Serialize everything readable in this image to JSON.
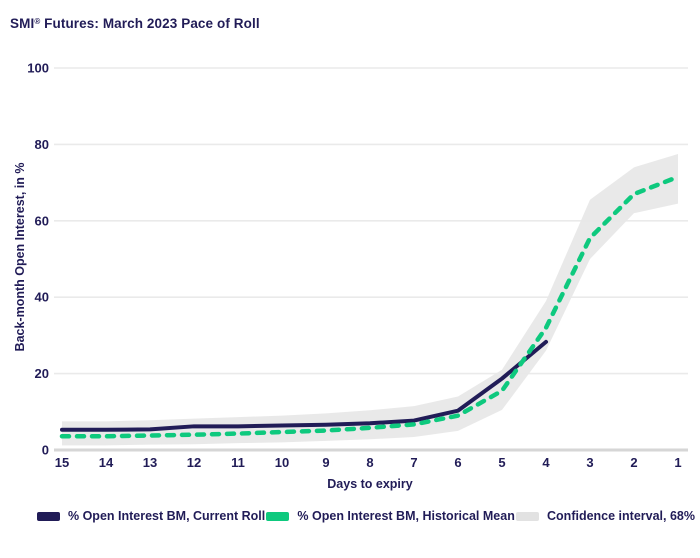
{
  "title": {
    "brand": "SMI",
    "sup": "®",
    "rest": " Futures: March 2023 Pace of Roll"
  },
  "colors": {
    "navy": "#211c57",
    "green": "#0ec97e",
    "band": "#e8e8e8",
    "grid": "#eaeaea",
    "grid_zero": "#d6d6d6",
    "text": "#211c57",
    "background": "#ffffff"
  },
  "chart_data": {
    "type": "line",
    "title": "SMI® Futures: March 2023 Pace of Roll",
    "xlabel": "Days to expiry",
    "ylabel": "Back-month Open Interest, in %",
    "x": [
      15,
      14,
      13,
      12,
      11,
      10,
      9,
      8,
      7,
      6,
      5,
      4,
      3,
      2,
      1
    ],
    "x_reversed_axis": true,
    "ylim": [
      0,
      100
    ],
    "yticks": [
      0,
      20,
      40,
      60,
      80,
      100
    ],
    "grid": "horizontal",
    "legend_position": "bottom",
    "series": [
      {
        "name": "% Open Interest BM, Current Roll",
        "color": "#211c57",
        "line_style": "solid",
        "values": [
          5.3,
          5.3,
          5.4,
          6.2,
          6.2,
          6.4,
          6.6,
          7,
          7.7,
          10.3,
          18.7,
          28.3,
          null,
          null,
          null
        ]
      },
      {
        "name": "% Open Interest BM, Historical Mean",
        "color": "#0ec97e",
        "line_style": "dashed",
        "values": [
          3.6,
          3.6,
          3.8,
          4,
          4.3,
          4.7,
          5.1,
          5.8,
          6.7,
          9,
          15.5,
          32,
          55.5,
          67,
          71.5
        ]
      }
    ],
    "confidence_band": {
      "name": "Confidence interval, 68%",
      "color": "#e8e8e8",
      "lower": [
        1.2,
        1.2,
        1.4,
        1.5,
        1.8,
        2,
        2.4,
        2.8,
        3.4,
        5,
        10.5,
        26,
        50,
        62,
        64.5
      ],
      "upper": [
        7.5,
        7.5,
        7.8,
        8.2,
        8.6,
        9,
        9.6,
        10.4,
        11.5,
        14,
        21,
        39,
        65.5,
        74,
        77.5
      ]
    }
  }
}
